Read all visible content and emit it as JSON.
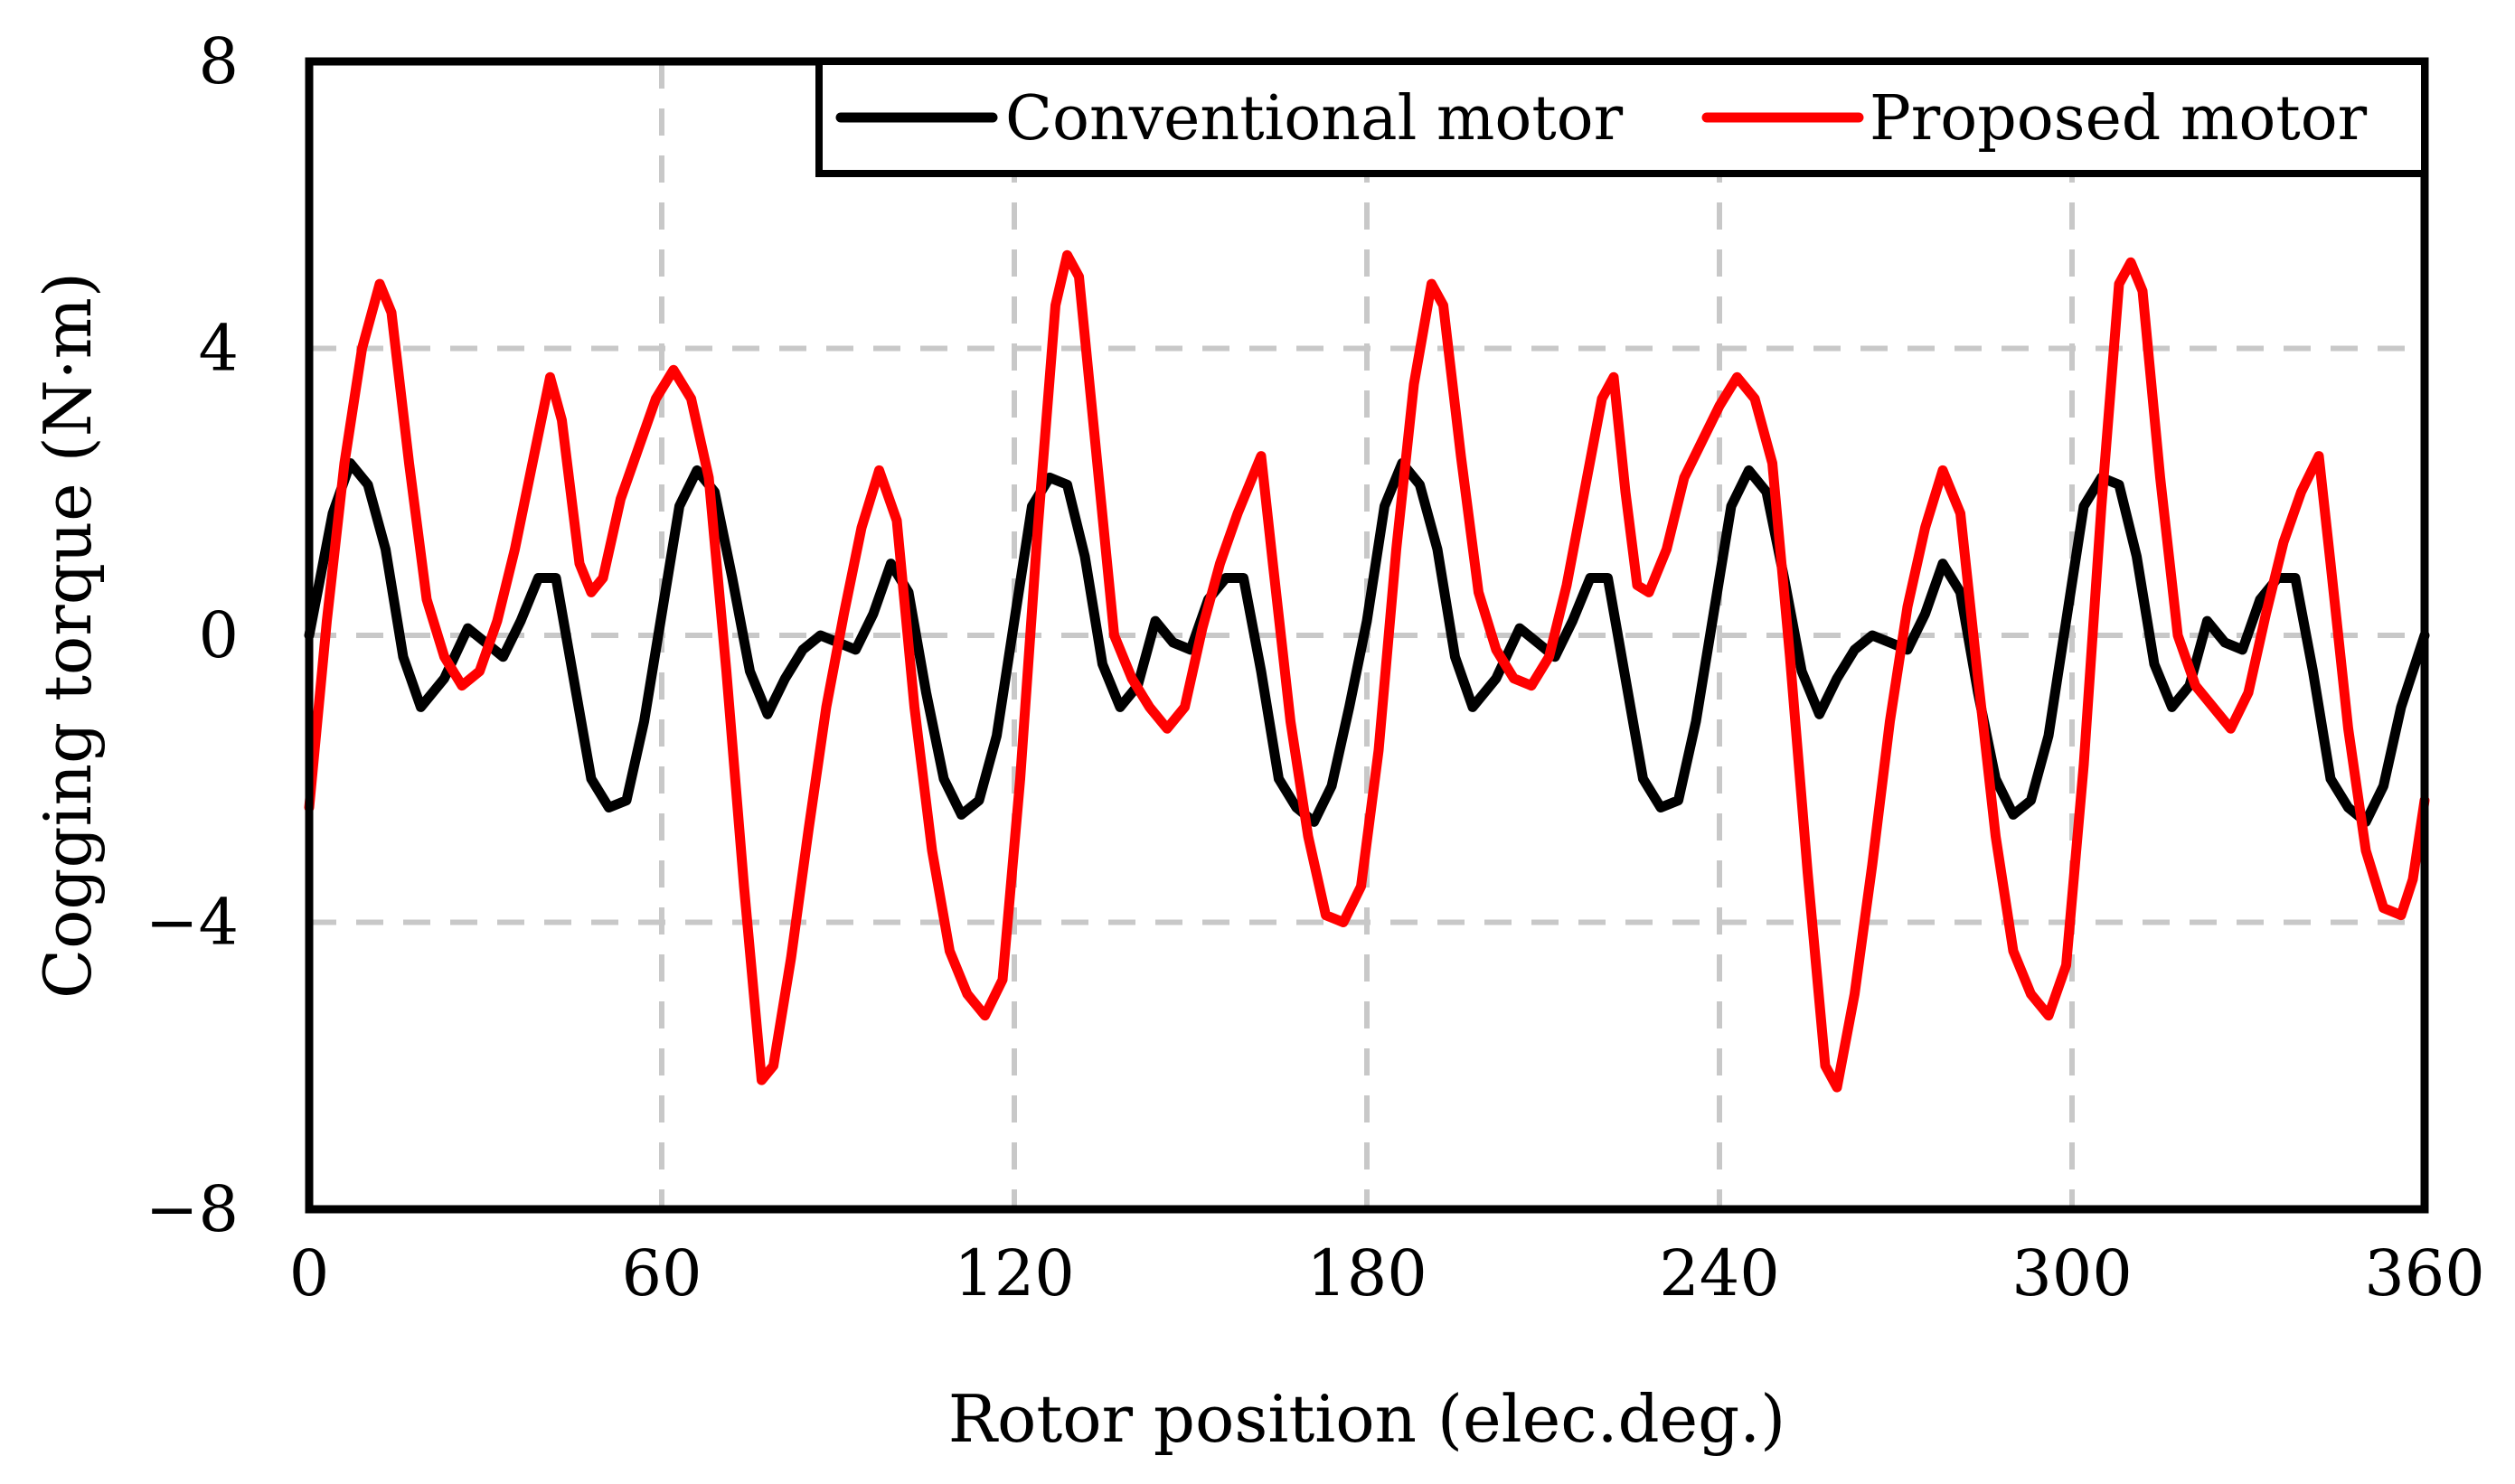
{
  "chart_data": {
    "type": "line",
    "title": "",
    "xlabel": "Rotor position (elec.deg.)",
    "ylabel": "Cogging torque (N·m)",
    "xlim": [
      0,
      360
    ],
    "ylim": [
      -8,
      8
    ],
    "x_ticks": [
      0,
      60,
      120,
      180,
      240,
      300,
      360
    ],
    "x_tick_labels": [
      "0",
      "60",
      "120",
      "180",
      "240",
      "300",
      "360"
    ],
    "y_ticks": [
      -8,
      -4,
      0,
      4,
      8
    ],
    "y_tick_labels": [
      "−8",
      "−4",
      "0",
      "4",
      "8"
    ],
    "grid": true,
    "legend_position": "top-right",
    "series": [
      {
        "name": "Conventional motor",
        "color": "#000000",
        "points": [
          [
            0,
            0
          ],
          [
            4,
            1.7
          ],
          [
            7,
            2.4
          ],
          [
            10,
            2.1
          ],
          [
            13,
            1.2
          ],
          [
            16,
            -0.3
          ],
          [
            19,
            -1.0
          ],
          [
            23,
            -0.6
          ],
          [
            27,
            0.1
          ],
          [
            30,
            -0.1
          ],
          [
            33,
            -0.3
          ],
          [
            36,
            0.2
          ],
          [
            39,
            0.8
          ],
          [
            42,
            0.8
          ],
          [
            45,
            -0.6
          ],
          [
            48,
            -2.0
          ],
          [
            51,
            -2.4
          ],
          [
            54,
            -2.3
          ],
          [
            57,
            -1.2
          ],
          [
            60,
            0.3
          ],
          [
            63,
            1.8
          ],
          [
            66,
            2.3
          ],
          [
            69,
            2.0
          ],
          [
            72,
            0.8
          ],
          [
            75,
            -0.5
          ],
          [
            78,
            -1.1
          ],
          [
            81,
            -0.6
          ],
          [
            84,
            -0.2
          ],
          [
            87,
            0.0
          ],
          [
            90,
            -0.1
          ],
          [
            93,
            -0.2
          ],
          [
            96,
            0.3
          ],
          [
            99,
            1.0
          ],
          [
            102,
            0.6
          ],
          [
            105,
            -0.8
          ],
          [
            108,
            -2.0
          ],
          [
            111,
            -2.5
          ],
          [
            114,
            -2.3
          ],
          [
            117,
            -1.4
          ],
          [
            120,
            0.2
          ],
          [
            123,
            1.8
          ],
          [
            126,
            2.2
          ],
          [
            129,
            2.1
          ],
          [
            132,
            1.1
          ],
          [
            135,
            -0.4
          ],
          [
            138,
            -1.0
          ],
          [
            141,
            -0.7
          ],
          [
            144,
            0.2
          ],
          [
            147,
            -0.1
          ],
          [
            150,
            -0.2
          ],
          [
            153,
            0.5
          ],
          [
            156,
            0.8
          ],
          [
            159,
            0.8
          ],
          [
            162,
            -0.5
          ],
          [
            165,
            -2.0
          ],
          [
            168,
            -2.4
          ],
          [
            171,
            -2.6
          ],
          [
            174,
            -2.1
          ],
          [
            177,
            -1.0
          ],
          [
            180,
            0.2
          ],
          [
            183,
            1.8
          ],
          [
            186,
            2.4
          ],
          [
            189,
            2.1
          ],
          [
            192,
            1.2
          ],
          [
            195,
            -0.3
          ],
          [
            198,
            -1.0
          ],
          [
            202,
            -0.6
          ],
          [
            206,
            0.1
          ],
          [
            209,
            -0.1
          ],
          [
            212,
            -0.3
          ],
          [
            215,
            0.2
          ],
          [
            218,
            0.8
          ],
          [
            221,
            0.8
          ],
          [
            224,
            -0.6
          ],
          [
            227,
            -2.0
          ],
          [
            230,
            -2.4
          ],
          [
            233,
            -2.3
          ],
          [
            236,
            -1.2
          ],
          [
            239,
            0.3
          ],
          [
            242,
            1.8
          ],
          [
            245,
            2.3
          ],
          [
            248,
            2.0
          ],
          [
            251,
            0.8
          ],
          [
            254,
            -0.5
          ],
          [
            257,
            -1.1
          ],
          [
            260,
            -0.6
          ],
          [
            263,
            -0.2
          ],
          [
            266,
            0.0
          ],
          [
            269,
            -0.1
          ],
          [
            272,
            -0.2
          ],
          [
            275,
            0.3
          ],
          [
            278,
            1.0
          ],
          [
            281,
            0.6
          ],
          [
            284,
            -0.8
          ],
          [
            287,
            -2.0
          ],
          [
            290,
            -2.5
          ],
          [
            293,
            -2.3
          ],
          [
            296,
            -1.4
          ],
          [
            299,
            0.2
          ],
          [
            302,
            1.8
          ],
          [
            305,
            2.2
          ],
          [
            308,
            2.1
          ],
          [
            311,
            1.1
          ],
          [
            314,
            -0.4
          ],
          [
            317,
            -1.0
          ],
          [
            320,
            -0.7
          ],
          [
            323,
            0.2
          ],
          [
            326,
            -0.1
          ],
          [
            329,
            -0.2
          ],
          [
            332,
            0.5
          ],
          [
            335,
            0.8
          ],
          [
            338,
            0.8
          ],
          [
            341,
            -0.5
          ],
          [
            344,
            -2.0
          ],
          [
            347,
            -2.4
          ],
          [
            350,
            -2.6
          ],
          [
            353,
            -2.1
          ],
          [
            356,
            -1.0
          ],
          [
            360,
            0
          ]
        ]
      },
      {
        "name": "Proposed motor",
        "color": "#ff0000",
        "points": [
          [
            0,
            -2.4
          ],
          [
            3,
            0.2
          ],
          [
            6,
            2.4
          ],
          [
            9,
            4.0
          ],
          [
            12,
            4.9
          ],
          [
            14,
            4.5
          ],
          [
            17,
            2.4
          ],
          [
            20,
            0.5
          ],
          [
            23,
            -0.3
          ],
          [
            26,
            -0.7
          ],
          [
            29,
            -0.5
          ],
          [
            32,
            0.2
          ],
          [
            35,
            1.2
          ],
          [
            38,
            2.4
          ],
          [
            41,
            3.6
          ],
          [
            43,
            3.0
          ],
          [
            46,
            1.0
          ],
          [
            48,
            0.6
          ],
          [
            50,
            0.8
          ],
          [
            53,
            1.9
          ],
          [
            56,
            2.6
          ],
          [
            59,
            3.3
          ],
          [
            62,
            3.7
          ],
          [
            65,
            3.3
          ],
          [
            68,
            2.2
          ],
          [
            71,
            -0.5
          ],
          [
            74,
            -3.5
          ],
          [
            77,
            -6.2
          ],
          [
            79,
            -6.0
          ],
          [
            82,
            -4.5
          ],
          [
            85,
            -2.7
          ],
          [
            88,
            -1.0
          ],
          [
            91,
            0.3
          ],
          [
            94,
            1.5
          ],
          [
            97,
            2.3
          ],
          [
            100,
            1.6
          ],
          [
            103,
            -1.0
          ],
          [
            106,
            -3.0
          ],
          [
            109,
            -4.4
          ],
          [
            112,
            -5.0
          ],
          [
            115,
            -5.3
          ],
          [
            118,
            -4.8
          ],
          [
            121,
            -2.0
          ],
          [
            124,
            1.5
          ],
          [
            127,
            4.6
          ],
          [
            129,
            5.3
          ],
          [
            131,
            5.0
          ],
          [
            134,
            2.5
          ],
          [
            137,
            0.0
          ],
          [
            140,
            -0.6
          ],
          [
            143,
            -1.0
          ],
          [
            146,
            -1.3
          ],
          [
            149,
            -1.0
          ],
          [
            152,
            0.1
          ],
          [
            155,
            1.0
          ],
          [
            158,
            1.7
          ],
          [
            162,
            2.5
          ],
          [
            164,
            1.0
          ],
          [
            167,
            -1.2
          ],
          [
            170,
            -2.8
          ],
          [
            173,
            -3.9
          ],
          [
            176,
            -4.0
          ],
          [
            179,
            -3.5
          ],
          [
            182,
            -1.6
          ],
          [
            185,
            1.2
          ],
          [
            188,
            3.5
          ],
          [
            191,
            4.9
          ],
          [
            193,
            4.6
          ],
          [
            196,
            2.5
          ],
          [
            199,
            0.6
          ],
          [
            202,
            -0.2
          ],
          [
            205,
            -0.6
          ],
          [
            208,
            -0.7
          ],
          [
            211,
            -0.3
          ],
          [
            214,
            0.7
          ],
          [
            217,
            2.0
          ],
          [
            220,
            3.3
          ],
          [
            222,
            3.6
          ],
          [
            224,
            2.0
          ],
          [
            226,
            0.7
          ],
          [
            228,
            0.6
          ],
          [
            231,
            1.2
          ],
          [
            234,
            2.2
          ],
          [
            237,
            2.7
          ],
          [
            240,
            3.2
          ],
          [
            243,
            3.6
          ],
          [
            246,
            3.3
          ],
          [
            249,
            2.4
          ],
          [
            252,
            -0.3
          ],
          [
            255,
            -3.3
          ],
          [
            258,
            -6.0
          ],
          [
            260,
            -6.3
          ],
          [
            263,
            -5.0
          ],
          [
            266,
            -3.2
          ],
          [
            269,
            -1.2
          ],
          [
            272,
            0.4
          ],
          [
            275,
            1.5
          ],
          [
            278,
            2.3
          ],
          [
            281,
            1.7
          ],
          [
            284,
            -0.6
          ],
          [
            287,
            -2.8
          ],
          [
            290,
            -4.4
          ],
          [
            293,
            -5.0
          ],
          [
            296,
            -5.3
          ],
          [
            299,
            -4.6
          ],
          [
            302,
            -1.8
          ],
          [
            305,
            1.8
          ],
          [
            308,
            4.9
          ],
          [
            310,
            5.2
          ],
          [
            312,
            4.8
          ],
          [
            315,
            2.2
          ],
          [
            318,
            0.0
          ],
          [
            321,
            -0.7
          ],
          [
            324,
            -1.0
          ],
          [
            327,
            -1.3
          ],
          [
            330,
            -0.8
          ],
          [
            333,
            0.3
          ],
          [
            336,
            1.3
          ],
          [
            339,
            2.0
          ],
          [
            342,
            2.5
          ],
          [
            344,
            1.0
          ],
          [
            347,
            -1.3
          ],
          [
            350,
            -3.0
          ],
          [
            353,
            -3.8
          ],
          [
            356,
            -3.9
          ],
          [
            358,
            -3.4
          ],
          [
            360,
            -2.3
          ]
        ]
      }
    ]
  }
}
